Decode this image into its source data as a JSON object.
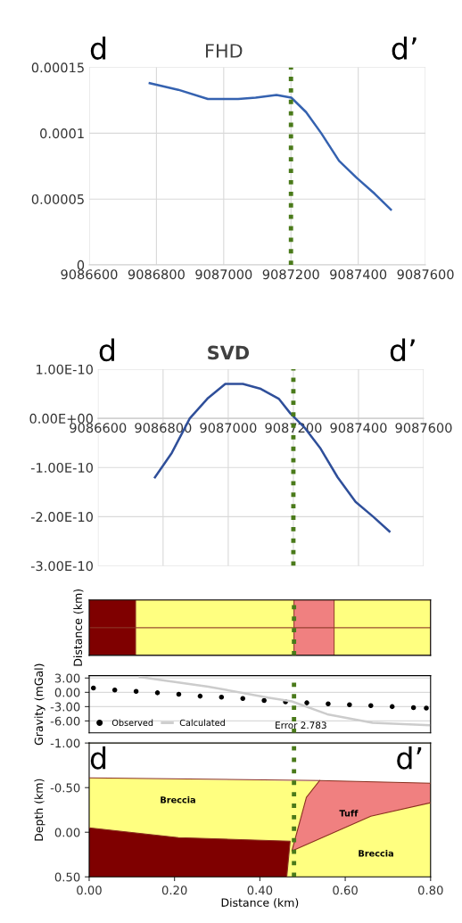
{
  "chart_data": [
    {
      "type": "line",
      "title": "FHD",
      "annotations": [
        "d",
        "d’"
      ],
      "series": [
        {
          "color": "#3562b0",
          "x": [
            9086780,
            9086865,
            9086953,
            9087043,
            9087095,
            9087157,
            9087201,
            9087245,
            9087290,
            9087343,
            9087396,
            9087449,
            9087497
          ],
          "values": [
            0.000138,
            0.000133,
            0.000126,
            0.000126,
            0.000127,
            0.000129,
            0.000127,
            0.000116,
            0.0001,
            7.9e-05,
            6.6e-05,
            5.4e-05,
            4.2e-05
          ]
        }
      ],
      "xlim": [
        9086600,
        9087600
      ],
      "xticks": [
        9086600,
        9086800,
        9087000,
        9087200,
        9087400,
        9087600
      ],
      "ylim": [
        0,
        0.00015
      ],
      "yticks": [
        {
          "value": 0,
          "label": "0"
        },
        {
          "value": 5e-05,
          "label": "0.00005"
        },
        {
          "value": 0.0001,
          "label": "0.0001"
        },
        {
          "value": 0.00015,
          "label": "0.00015"
        }
      ],
      "grid": true,
      "legend": false,
      "ref_lines": [
        {
          "axis": "x",
          "value": 9087200,
          "label": null,
          "color": "#4a7a1a",
          "line_style": "dotted"
        }
      ]
    },
    {
      "type": "line",
      "title": "SVD",
      "annotations": [
        "d",
        "d’"
      ],
      "series": [
        {
          "color": "#2f4f9a",
          "x": [
            9086775,
            9086827,
            9086882,
            9086936,
            9086991,
            9087045,
            9087100,
            9087155,
            9087191,
            9087236,
            9087282,
            9087336,
            9087391,
            9087445,
            9087495
          ],
          "values": [
            -1.2e-10,
            -7e-11,
            0.0,
            4e-11,
            7e-11,
            7e-11,
            6e-11,
            4e-11,
            1e-11,
            -2e-11,
            -6e-11,
            -1.2e-10,
            -1.7e-10,
            -2e-10,
            -2.3e-10
          ]
        }
      ],
      "xlim": [
        9086600,
        9087600
      ],
      "xticks": [
        9086600,
        9086800,
        9087000,
        9087200,
        9087400,
        9087600
      ],
      "ylim": [
        -3e-10,
        1e-10
      ],
      "yticks": [
        {
          "value": -3e-10,
          "label": "-3.00E-10"
        },
        {
          "value": -2e-10,
          "label": "-2.00E-10"
        },
        {
          "value": -1e-10,
          "label": "-1.00E-10"
        },
        {
          "value": 0,
          "label": "0.00E+00"
        },
        {
          "value": 1e-10,
          "label": "1.00E-10"
        }
      ],
      "grid": true,
      "legend": false,
      "ref_lines": [
        {
          "axis": "x",
          "value": 9087200,
          "label": null,
          "color": "#4a7a1a",
          "line_style": "dotted"
        }
      ]
    },
    {
      "type": "bar",
      "orientation": "horizontal",
      "stacked": true,
      "ylabel": "Distance (km)",
      "categories": [
        null,
        null
      ],
      "series": [
        {
          "color": "#7f0000",
          "values": [
            0.109,
            0.109
          ]
        },
        {
          "color": "#ffff80",
          "values": [
            0.371,
            0.371
          ]
        },
        {
          "color": "#f08080",
          "values": [
            0.094,
            0.094
          ]
        },
        {
          "color": "#ffff80",
          "values": [
            0.226,
            0.226
          ]
        }
      ],
      "xlim": [
        0,
        0.8
      ],
      "tick_labels": false,
      "ref_lines": [
        {
          "axis": "x",
          "value": 0.48,
          "label": null,
          "color": "#4a7a1a",
          "line_style": "dotted"
        }
      ]
    },
    {
      "type": "scatter",
      "ylabel": "Gravity (mGal)",
      "annotations": [
        "Error 2.783"
      ],
      "series": [
        {
          "name": "Observed",
          "color": "#000000",
          "marker": "circle",
          "x": [
            0.01,
            0.06,
            0.11,
            0.16,
            0.21,
            0.26,
            0.31,
            0.36,
            0.41,
            0.46,
            0.51,
            0.56,
            0.61,
            0.66,
            0.71,
            0.76,
            0.79
          ],
          "values": [
            0.9,
            0.5,
            0.2,
            -0.1,
            -0.4,
            -0.8,
            -1.0,
            -1.3,
            -1.7,
            -2.0,
            -2.2,
            -2.4,
            -2.6,
            -2.8,
            -3.0,
            -3.2,
            -3.3
          ]
        },
        {
          "name": "Calculated",
          "type": "line",
          "color": "#cccccc",
          "x": [
            0.119,
            0.279,
            0.419,
            0.475,
            0.558,
            0.664,
            0.796
          ],
          "values": [
            3.2,
            1.2,
            -1.1,
            -1.9,
            -4.6,
            -6.4,
            -6.9
          ]
        }
      ],
      "xlim": [
        0,
        0.8
      ],
      "ylim": [
        -8.5,
        3.5
      ],
      "yticks": [
        {
          "value": -6,
          "label": "-6.00"
        },
        {
          "value": -3,
          "label": "-3.00"
        },
        {
          "value": 0,
          "label": "0.00"
        },
        {
          "value": 3,
          "label": "3.00"
        }
      ],
      "tick_labels": "y",
      "grid": "y",
      "legend": "bottom left",
      "ref_lines": [
        {
          "axis": "x",
          "value": 0.48,
          "label": null,
          "color": "#4a7a1a",
          "line_style": "dotted"
        }
      ]
    },
    {
      "type": "line",
      "ylabel": "Depth (km)",
      "xlabel": "Distance (km)",
      "series": [
        {
          "color": "#8a3020",
          "x": [
            0,
            0.54,
            0.8
          ],
          "values": [
            -0.61,
            -0.58,
            -0.55
          ]
        },
        {
          "color": "#8a3020",
          "x": [
            0,
            0.209,
            0.471,
            0.463
          ],
          "values": [
            -0.05,
            0.06,
            0.1,
            0.5
          ]
        },
        {
          "color": "#8a3020",
          "x": [
            0.54,
            0.509,
            0.475,
            0.66,
            0.8
          ],
          "values": [
            -0.58,
            -0.39,
            0.21,
            -0.18,
            -0.33
          ]
        }
      ],
      "annotations": [
        "d",
        "d’",
        "Breccia",
        "Tuff",
        "Breccia"
      ],
      "xlim": [
        0,
        0.8
      ],
      "xticks": [
        {
          "value": 0,
          "label": "0.00"
        },
        {
          "value": 0.2,
          "label": "0.20"
        },
        {
          "value": 0.4,
          "label": "0.40"
        },
        {
          "value": 0.6,
          "label": "0.60"
        },
        {
          "value": 0.8,
          "label": "0.80"
        }
      ],
      "ylim": [
        0.5,
        -1.0
      ],
      "yticks": [
        {
          "value": -1.0,
          "label": "-1.00"
        },
        {
          "value": -0.5,
          "label": "-0.50"
        },
        {
          "value": 0,
          "label": "0.00"
        },
        {
          "value": 0.5,
          "label": "0.50"
        }
      ],
      "ref_lines": [
        {
          "axis": "x",
          "value": 0.48,
          "label": null,
          "color": "#4a7a1a",
          "line_style": "dotted"
        }
      ]
    }
  ]
}
